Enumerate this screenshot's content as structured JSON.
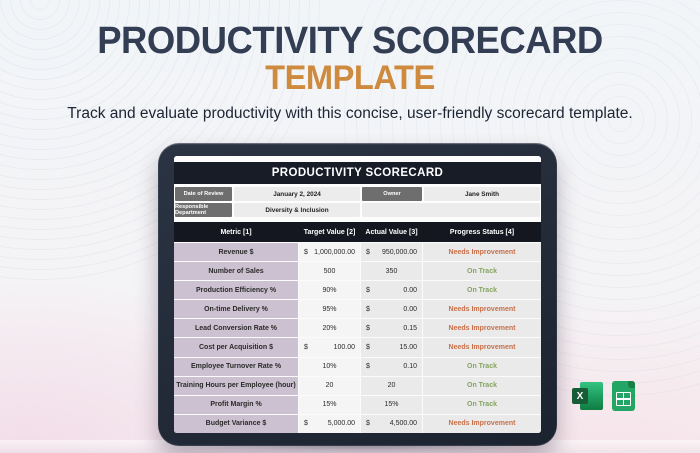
{
  "hero": {
    "title_line1": "PRODUCTIVITY SCORECARD",
    "title_line2": "TEMPLATE",
    "subtitle": "Track and evaluate productivity with this concise, user-friendly scorecard template."
  },
  "tablet": {
    "sheet_title": "PRODUCTIVITY SCORECARD",
    "info": {
      "date_label": "Date of Review",
      "date_value": "January 2, 2024",
      "owner_label": "Owner",
      "owner_value": "Jane Smith",
      "dept_label": "Responsible Department",
      "dept_value": "Diversity & Inclusion"
    },
    "table": {
      "headers": [
        "Metric [1]",
        "Target Value [2]",
        "Actual Value [3]",
        "Progress Status [4]"
      ],
      "rows": [
        {
          "metric": "Revenue $",
          "target_prefix": "$",
          "target_value": "1,000,000.00",
          "actual_prefix": "$",
          "actual_value": "950,000.00",
          "status": "Needs Improvement",
          "status_type": "bad"
        },
        {
          "metric": "Number of Sales",
          "target_prefix": "",
          "target_value": "500",
          "actual_prefix": "",
          "actual_value": "350",
          "status": "On Track",
          "status_type": "good"
        },
        {
          "metric": "Production Efficiency %",
          "target_prefix": "",
          "target_value": "90%",
          "actual_prefix": "$",
          "actual_value": "0.00",
          "status": "On Track",
          "status_type": "good"
        },
        {
          "metric": "On-time Delivery %",
          "target_prefix": "",
          "target_value": "95%",
          "actual_prefix": "$",
          "actual_value": "0.00",
          "status": "Needs Improvement",
          "status_type": "bad"
        },
        {
          "metric": "Lead Conversion Rate %",
          "target_prefix": "",
          "target_value": "20%",
          "actual_prefix": "$",
          "actual_value": "0.15",
          "status": "Needs Improvement",
          "status_type": "bad"
        },
        {
          "metric": "Cost per Acquisition $",
          "target_prefix": "$",
          "target_value": "100.00",
          "actual_prefix": "$",
          "actual_value": "15.00",
          "status": "Needs Improvement",
          "status_type": "bad"
        },
        {
          "metric": "Employee Turnover Rate %",
          "target_prefix": "",
          "target_value": "10%",
          "actual_prefix": "$",
          "actual_value": "0.10",
          "status": "On Track",
          "status_type": "good"
        },
        {
          "metric": "Training Hours per Employee (hour)",
          "target_prefix": "",
          "target_value": "20",
          "actual_prefix": "",
          "actual_value": "20",
          "status": "On Track",
          "status_type": "good"
        },
        {
          "metric": "Profit Margin %",
          "target_prefix": "",
          "target_value": "15%",
          "actual_prefix": "",
          "actual_value": "15%",
          "status": "On Track",
          "status_type": "good"
        },
        {
          "metric": "Budget Variance $",
          "target_prefix": "$",
          "target_value": "5,000.00",
          "actual_prefix": "$",
          "actual_value": "4,500.00",
          "status": "Needs Improvement",
          "status_type": "bad"
        }
      ]
    }
  },
  "badges": {
    "excel_letter": "X"
  },
  "colors": {
    "title_navy": "#333e55",
    "title_orange": "#ce8b3f",
    "status_bad": "#c7704a",
    "status_good": "#84a55f",
    "metric_column": "#ccc1d0",
    "header_bar": "#14171f"
  }
}
